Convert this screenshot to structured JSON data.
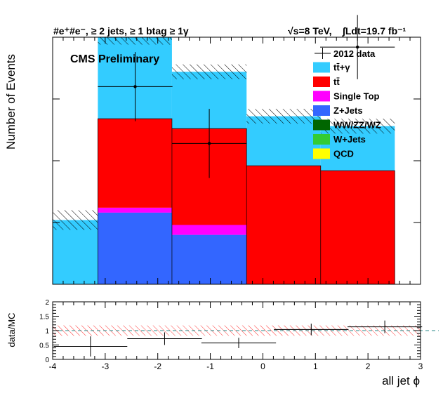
{
  "header": {
    "selection_label": "#e⁺#e⁻, ≥ 2 jets, ≥ 1 btag ≥ 1γ",
    "energy_label": "√s=8 TeV,",
    "lumi_label": "∫Ldt=19.7 fb⁻¹",
    "experiment_label": "CMS Preliminary"
  },
  "chart_data": [
    {
      "type": "bar",
      "stacked": true,
      "title": "",
      "xlabel": "all jet ϕ",
      "ylabel": "Number of Events",
      "xlim": [
        -4,
        3
      ],
      "ylim": [
        0,
        1
      ],
      "bin_edges": [
        -4,
        -3.14,
        -1.73,
        -0.31,
        1.1,
        2.51,
        3.14
      ],
      "series": [
        {
          "name": "QCD",
          "color": "#ffff00",
          "values": [
            0,
            0,
            0,
            0,
            0,
            0
          ]
        },
        {
          "name": "W+Jets",
          "color": "#33cc33",
          "values": [
            0,
            0,
            0,
            0,
            0,
            0
          ]
        },
        {
          "name": "WW/ZZ/WZ",
          "color": "#006600",
          "values": [
            0,
            0,
            0,
            0,
            0,
            0
          ]
        },
        {
          "name": "Z+Jets",
          "color": "#3366ff",
          "values": [
            0,
            0.29,
            0.2,
            0,
            0,
            0
          ]
        },
        {
          "name": "Single Top",
          "color": "#ff00ff",
          "values": [
            0,
            0.02,
            0.04,
            0,
            0,
            0
          ]
        },
        {
          "name": "tt̄",
          "color": "#ff0000",
          "values": [
            0,
            0.36,
            0.39,
            0.48,
            0.46,
            0
          ]
        },
        {
          "name": "tt̄+γ",
          "color": "#33ccff",
          "values": [
            0.26,
            0.33,
            0.23,
            0.2,
            0.18,
            0
          ]
        }
      ],
      "mc_uncertainty": [
        0.04,
        0.03,
        0.03,
        0.03,
        0.03,
        0
      ],
      "data": {
        "name": "2012 data",
        "x": [
          -2.43,
          -1.02,
          0.4,
          1.8
        ],
        "y": [
          0.8,
          0.57,
          0,
          0.96
        ],
        "yerr": [
          0.14,
          0.14,
          0,
          0.13
        ],
        "xerr": [
          0.71,
          0.71,
          0.71,
          0.71
        ]
      },
      "legend": {
        "position": "top-right",
        "data_entry": "2012 data",
        "entries": [
          "tt̄+γ",
          "tt̄",
          "Single Top",
          "Z+Jets",
          "WW/ZZ/WZ",
          "W+Jets",
          "QCD"
        ]
      }
    },
    {
      "type": "scatter",
      "title": "",
      "xlabel": "all jet ϕ",
      "ylabel": "data/MC",
      "xlim": [
        -4,
        3
      ],
      "ylim": [
        0,
        2
      ],
      "x_ticks": [
        "-4",
        "-3",
        "-2",
        "-1",
        "0",
        "1",
        "2",
        "3"
      ],
      "y_ticks": [
        "0",
        "0.5",
        "1",
        "1.5",
        "2"
      ],
      "reference_line": 1,
      "points": [
        {
          "x": -3.28,
          "y": 0.45,
          "xerr": 0.7,
          "yerr": 0.35
        },
        {
          "x": -1.87,
          "y": 0.72,
          "xerr": 0.71,
          "yerr": 0.22
        },
        {
          "x": -0.46,
          "y": 0.57,
          "xerr": 0.71,
          "yerr": 0.18
        },
        {
          "x": 0.92,
          "y": 1.04,
          "xerr": 0.71,
          "yerr": 0.2
        },
        {
          "x": 2.32,
          "y": 1.13,
          "xerr": 0.71,
          "yerr": 0.22
        }
      ],
      "band_halfwidth": 0.18
    }
  ]
}
